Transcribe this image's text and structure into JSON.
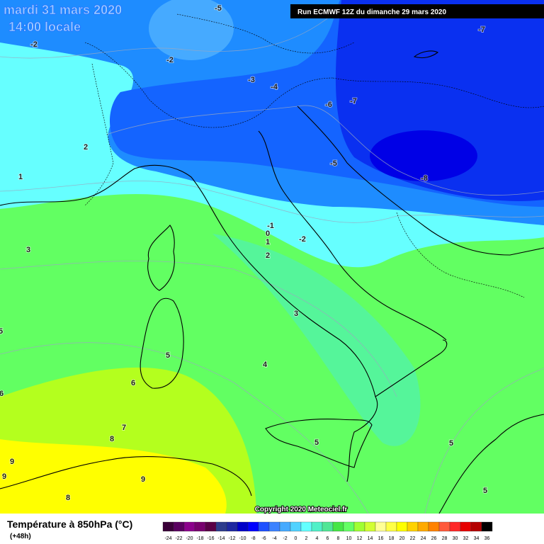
{
  "header": {
    "date": "mardi 31 mars 2020",
    "time": "14:00 locale",
    "run": "Run ECMWF 12Z du dimanche 29 mars 2020"
  },
  "map": {
    "contour_labels": [
      -5,
      -7,
      -2,
      -2,
      -3,
      -4,
      -6,
      -7,
      -5,
      -8,
      2,
      1,
      3,
      -1,
      0,
      1,
      2,
      -2,
      3,
      5,
      5,
      4,
      6,
      6,
      7,
      8,
      9,
      9,
      9,
      8,
      5,
      5,
      5
    ],
    "copyright": "Copyright 2020 Meteociel.fr"
  },
  "legend": {
    "title": "Température à 850hPa (°C)",
    "subtitle": "(+48h)",
    "labels": [
      -24,
      -22,
      -20,
      -18,
      -16,
      -14,
      -12,
      -10,
      -8,
      -6,
      -4,
      -2,
      0,
      2,
      4,
      6,
      8,
      10,
      12,
      14,
      16,
      18,
      20,
      22,
      24,
      26,
      28,
      30,
      32,
      34,
      36
    ],
    "colors": [
      "#3a0038",
      "#5a0060",
      "#8c008c",
      "#78006e",
      "#5a0046",
      "#2d3c8c",
      "#1e28a0",
      "#0000c8",
      "#0000ff",
      "#1e50ff",
      "#3c82ff",
      "#46aaff",
      "#50d2ff",
      "#64ffff",
      "#50f0c8",
      "#50e696",
      "#46e646",
      "#64ff64",
      "#a0ff32",
      "#d2ff32",
      "#ffff96",
      "#ffff46",
      "#ffff00",
      "#ffd200",
      "#ffaa00",
      "#ff8200",
      "#ff5a3c",
      "#ff2828",
      "#e60000",
      "#b40000",
      "#000000"
    ]
  }
}
